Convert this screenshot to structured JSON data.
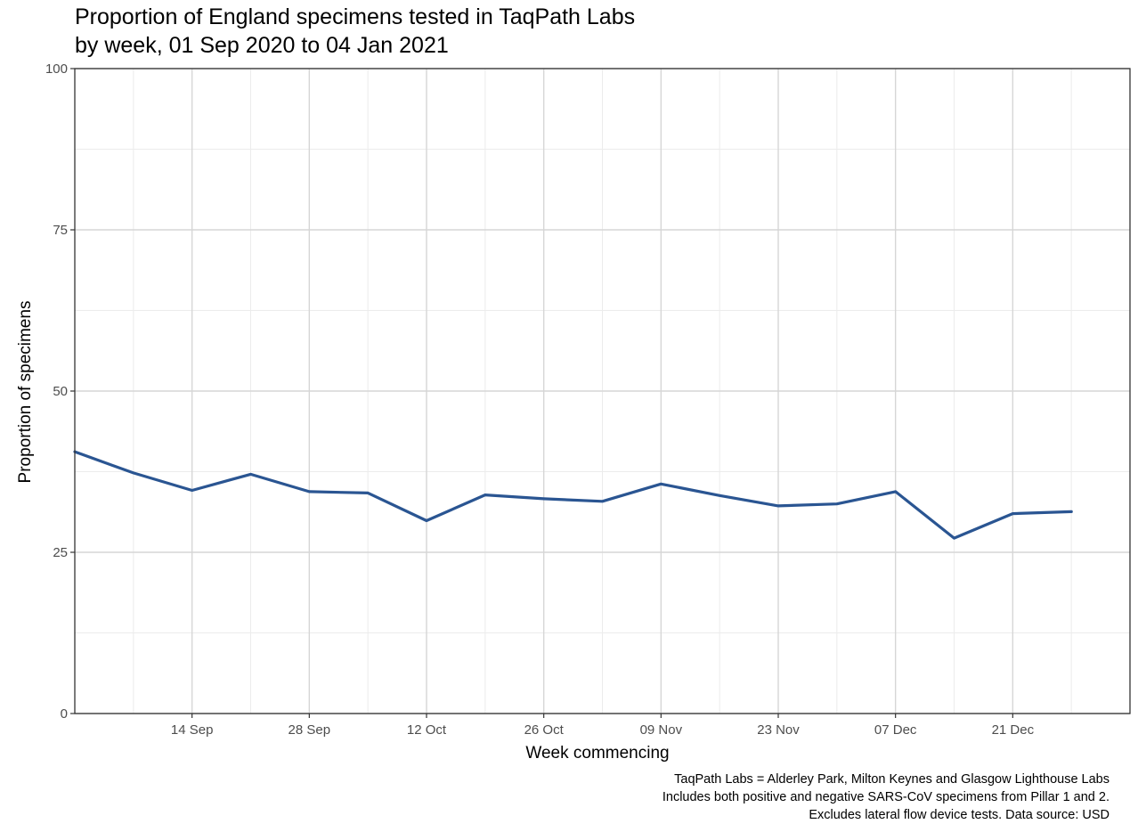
{
  "chart_data": {
    "type": "line",
    "title": "Proportion of England specimens tested in TaqPath Labs",
    "subtitle": "by week, 01 Sep 2020 to 04 Jan 2021",
    "xlabel": "Week commencing",
    "ylabel": "Proportion of specimens",
    "ylim": [
      0,
      100
    ],
    "xlim": [
      "2020-08-31",
      "2021-01-04"
    ],
    "y_ticks": [
      {
        "value": 0,
        "label": "0"
      },
      {
        "value": 25,
        "label": "25"
      },
      {
        "value": 50,
        "label": "50"
      },
      {
        "value": 75,
        "label": "75"
      },
      {
        "value": 100,
        "label": "100"
      }
    ],
    "x_ticks": [
      {
        "date": "2020-09-14",
        "label": "14 Sep"
      },
      {
        "date": "2020-09-28",
        "label": "28 Sep"
      },
      {
        "date": "2020-10-12",
        "label": "12 Oct"
      },
      {
        "date": "2020-10-26",
        "label": "26 Oct"
      },
      {
        "date": "2020-11-09",
        "label": "09 Nov"
      },
      {
        "date": "2020-11-23",
        "label": "23 Nov"
      },
      {
        "date": "2020-12-07",
        "label": "07 Dec"
      },
      {
        "date": "2020-12-21",
        "label": "21 Dec"
      }
    ],
    "grid": true,
    "series": [
      {
        "color": "#2a5592",
        "points": [
          {
            "x": "2020-08-31",
            "y": 40.6
          },
          {
            "x": "2020-09-07",
            "y": 37.3
          },
          {
            "x": "2020-09-14",
            "y": 34.6
          },
          {
            "x": "2020-09-21",
            "y": 37.1
          },
          {
            "x": "2020-09-28",
            "y": 34.4
          },
          {
            "x": "2020-10-05",
            "y": 34.2
          },
          {
            "x": "2020-10-12",
            "y": 29.9
          },
          {
            "x": "2020-10-19",
            "y": 33.9
          },
          {
            "x": "2020-10-26",
            "y": 33.3
          },
          {
            "x": "2020-11-02",
            "y": 32.9
          },
          {
            "x": "2020-11-09",
            "y": 35.6
          },
          {
            "x": "2020-11-16",
            "y": 33.8
          },
          {
            "x": "2020-11-23",
            "y": 32.2
          },
          {
            "x": "2020-11-30",
            "y": 32.5
          },
          {
            "x": "2020-12-07",
            "y": 34.4
          },
          {
            "x": "2020-12-14",
            "y": 27.2
          },
          {
            "x": "2020-12-21",
            "y": 31.0
          },
          {
            "x": "2020-12-28",
            "y": 31.3
          }
        ]
      }
    ],
    "caption": [
      "TaqPath Labs = Alderley Park, Milton Keynes and Glasgow Lighthouse Labs",
      "Includes both positive and negative SARS-CoV specimens from Pillar 1 and 2.",
      "Excludes lateral flow device tests. Data source: USD"
    ]
  }
}
